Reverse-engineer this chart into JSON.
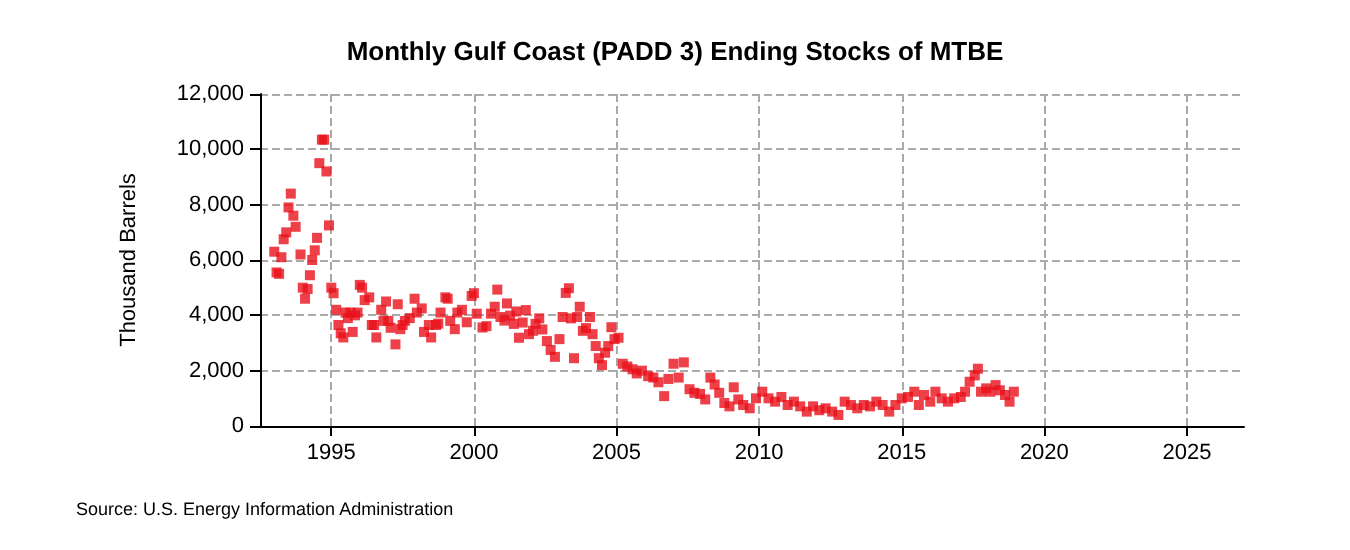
{
  "chart_data": {
    "type": "scatter",
    "title": "Monthly Gulf Coast (PADD 3) Ending Stocks of MTBE",
    "ylabel": "Thousand Barrels",
    "annotations": [
      "Source: U.S. Energy Information Administration"
    ],
    "xlim": [
      1992.5,
      2027
    ],
    "xticks": [
      1995,
      2000,
      2005,
      2010,
      2015,
      2020,
      2025
    ],
    "ylim": [
      0,
      12000
    ],
    "yticks": [
      {
        "value": 0,
        "label": "0"
      },
      {
        "value": 2000,
        "label": "2,000"
      },
      {
        "value": 4000,
        "label": "4,000"
      },
      {
        "value": 6000,
        "label": "6,000"
      },
      {
        "value": 8000,
        "label": "8,000"
      },
      {
        "value": 10000,
        "label": "10,000"
      },
      {
        "value": 12000,
        "label": "12,000"
      }
    ],
    "grid": true,
    "marker": "square",
    "series": [
      {
        "color": "#e8101a",
        "x": [
          1993.0,
          1993.08,
          1993.17,
          1993.25,
          1993.33,
          1993.42,
          1993.5,
          1993.58,
          1993.67,
          1993.75,
          1993.92,
          1994.0,
          1994.08,
          1994.17,
          1994.25,
          1994.33,
          1994.42,
          1994.5,
          1994.58,
          1994.67,
          1994.75,
          1994.83,
          1994.92,
          1995.0,
          1995.08,
          1995.17,
          1995.25,
          1995.33,
          1995.42,
          1995.5,
          1995.58,
          1995.67,
          1995.75,
          1995.83,
          1995.92,
          1996.0,
          1996.08,
          1996.17,
          1996.33,
          1996.42,
          1996.5,
          1996.58,
          1996.75,
          1996.83,
          1996.92,
          1997.0,
          1997.08,
          1997.25,
          1997.33,
          1997.42,
          1997.5,
          1997.58,
          1997.75,
          1997.92,
          1998.0,
          1998.17,
          1998.25,
          1998.42,
          1998.5,
          1998.67,
          1998.75,
          1998.83,
          1999.0,
          1999.08,
          1999.17,
          1999.33,
          1999.42,
          1999.58,
          1999.75,
          1999.92,
          2000.0,
          2000.1,
          2000.3,
          2000.44,
          2000.6,
          2000.73,
          2000.82,
          2000.93,
          2001.07,
          2001.16,
          2001.27,
          2001.4,
          2001.49,
          2001.58,
          2001.71,
          2001.82,
          2001.93,
          2002.07,
          2002.16,
          2002.29,
          2002.4,
          2002.56,
          2002.69,
          2002.84,
          2003.0,
          2003.11,
          2003.22,
          2003.33,
          2003.4,
          2003.51,
          2003.62,
          2003.71,
          2003.82,
          2003.93,
          2004.07,
          2004.16,
          2004.27,
          2004.38,
          2004.49,
          2004.6,
          2004.71,
          2004.82,
          2004.93,
          2005.07,
          2005.22,
          2005.38,
          2005.56,
          2005.71,
          2005.89,
          2006.11,
          2006.29,
          2006.47,
          2006.67,
          2006.82,
          2007.0,
          2007.18,
          2007.36,
          2007.56,
          2007.73,
          2007.93,
          2008.11,
          2008.29,
          2008.44,
          2008.6,
          2008.78,
          2008.96,
          2009.11,
          2009.27,
          2009.44,
          2009.67,
          2009.89,
          2010.11,
          2010.33,
          2010.56,
          2010.78,
          2011.0,
          2011.22,
          2011.44,
          2011.67,
          2011.89,
          2012.11,
          2012.33,
          2012.56,
          2012.78,
          2013.0,
          2013.22,
          2013.44,
          2013.67,
          2013.89,
          2014.11,
          2014.33,
          2014.56,
          2014.78,
          2015.0,
          2015.22,
          2015.44,
          2015.6,
          2015.78,
          2016.0,
          2016.18,
          2016.4,
          2016.62,
          2016.84,
          2017.07,
          2017.22,
          2017.38,
          2017.56,
          2017.67,
          2017.78,
          2017.96,
          2018.11,
          2018.29,
          2018.44,
          2018.62,
          2018.78,
          2018.93
        ],
        "values": [
          6300,
          5550,
          5500,
          6100,
          6750,
          7000,
          7900,
          8400,
          7600,
          7200,
          6200,
          5000,
          4600,
          4950,
          5450,
          6000,
          6350,
          6800,
          9500,
          10350,
          10350,
          9200,
          7250,
          5000,
          4800,
          4200,
          3650,
          3350,
          3200,
          4100,
          3900,
          4100,
          3400,
          4000,
          4100,
          5100,
          5000,
          4550,
          4650,
          3650,
          3650,
          3200,
          4200,
          3800,
          4500,
          3800,
          3550,
          2950,
          4400,
          3500,
          3650,
          3800,
          3900,
          4600,
          4100,
          4250,
          3400,
          3650,
          3200,
          3650,
          3700,
          4100,
          4650,
          4600,
          3800,
          3500,
          4100,
          4200,
          3750,
          4700,
          4800,
          4060,
          3560,
          3610,
          4060,
          4310,
          4930,
          3940,
          3810,
          4430,
          3990,
          3690,
          4140,
          3190,
          3740,
          4190,
          3320,
          3440,
          3690,
          3890,
          3490,
          3070,
          2750,
          2500,
          3140,
          3940,
          4810,
          4980,
          3890,
          2450,
          3940,
          4310,
          3440,
          3540,
          3940,
          3320,
          2890,
          2450,
          2200,
          2650,
          2890,
          3570,
          3140,
          3190,
          2250,
          2150,
          2050,
          1900,
          2000,
          1800,
          1750,
          1580,
          1080,
          1700,
          2250,
          1750,
          2300,
          1330,
          1200,
          1160,
          960,
          1750,
          1500,
          1200,
          830,
          710,
          1400,
          960,
          760,
          640,
          1000,
          1240,
          1000,
          880,
          1050,
          760,
          880,
          710,
          520,
          710,
          570,
          640,
          520,
          400,
          880,
          760,
          640,
          760,
          710,
          880,
          760,
          520,
          760,
          1000,
          1050,
          1240,
          760,
          1120,
          880,
          1240,
          1000,
          880,
          1000,
          1050,
          1240,
          1600,
          1830,
          2070,
          1240,
          1360,
          1240,
          1480,
          1290,
          1120,
          880,
          1240
        ]
      }
    ]
  }
}
